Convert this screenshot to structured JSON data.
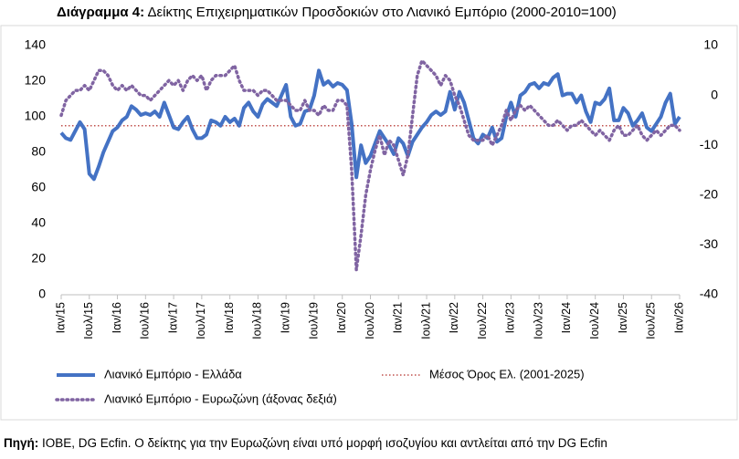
{
  "chart_data": {
    "type": "line",
    "title_label": "Διάγραμμα 4:",
    "title": "Δείκτης Επιχειρηματικών Προσδοκιών στο Λιανικό Εμπόριο (2000-2010=100)",
    "source_label": "Πηγή:",
    "source": "ΙΟΒΕ, DG Ecfin. Ο δείκτης για την Ευρωζώνη είναι υπό μορφή ισοζυγίου και αντλείται από την DG Ecfin",
    "categories": [
      "Ιαν/15",
      null,
      null,
      null,
      null,
      null,
      "Ιουλ/15",
      null,
      null,
      null,
      null,
      null,
      "Ιαν/16",
      null,
      null,
      null,
      null,
      null,
      "Ιουλ/16",
      null,
      null,
      null,
      null,
      null,
      "Ιαν/17",
      null,
      null,
      null,
      null,
      null,
      "Ιουλ/17",
      null,
      null,
      null,
      null,
      null,
      "Ιαν/18",
      null,
      null,
      null,
      null,
      null,
      "Ιουλ/18",
      null,
      null,
      null,
      null,
      null,
      "Ιαν/19",
      null,
      null,
      null,
      null,
      null,
      "Ιουλ/19",
      null,
      null,
      null,
      null,
      null,
      "Ιαν/20",
      null,
      null,
      null,
      null,
      null,
      "Ιουλ/20",
      null,
      null,
      null,
      null,
      null,
      "Ιαν/21",
      null,
      null,
      null,
      null,
      null,
      "Ιουλ/21",
      null,
      null,
      null,
      null,
      null,
      "Ιαν/22",
      null,
      null,
      null,
      null,
      null,
      "Ιουλ/22",
      null,
      null,
      null,
      null,
      null,
      "Ιαν/23",
      null,
      null,
      null,
      null,
      null,
      "Ιουλ/23",
      null,
      null,
      null,
      null,
      null,
      "Ιαν/24",
      null,
      null,
      null,
      null,
      null,
      "Ιουλ/24",
      null,
      null,
      null,
      null,
      null,
      "Ιαν/25",
      null,
      null,
      null,
      null,
      null,
      "Ιουλ/25",
      null,
      null,
      null,
      null,
      null,
      "Ιαν/26"
    ],
    "series": [
      {
        "name": "Λιανικό Εμπόριο  - Ελλάδα",
        "color": "#4472c4",
        "axis": "y",
        "line_style": "solid",
        "values": [
          91,
          88,
          87,
          92,
          97,
          93,
          68,
          65,
          72,
          80,
          86,
          92,
          94,
          98,
          100,
          106,
          104,
          101,
          102,
          101,
          103,
          100,
          108,
          101,
          94,
          93,
          97,
          100,
          93,
          88,
          88,
          90,
          98,
          97,
          95,
          100,
          97,
          99,
          95,
          105,
          108,
          103,
          100,
          107,
          110,
          108,
          106,
          112,
          118,
          100,
          95,
          96,
          103,
          104,
          112,
          126,
          118,
          120,
          117,
          119,
          118,
          115,
          96,
          66,
          84,
          74,
          78,
          85,
          92,
          88,
          84,
          79,
          88,
          85,
          78,
          86,
          90,
          94,
          97,
          101,
          103,
          101,
          103,
          114,
          104,
          114,
          108,
          98,
          88,
          85,
          90,
          88,
          94,
          86,
          88,
          100,
          108,
          100,
          112,
          114,
          118,
          119,
          116,
          119,
          118,
          122,
          124,
          112,
          113,
          113,
          108,
          112,
          103,
          97,
          108,
          107,
          110,
          116,
          98,
          98,
          105,
          102,
          95,
          98,
          102,
          94,
          92,
          96,
          100,
          108,
          113,
          96,
          100
        ]
      },
      {
        "name": "Λιανικό Εμπόριο - Ευρωζώνη (άξονας δεξιά)",
        "color": "#8064a2",
        "axis": "y2",
        "line_style": "dotted",
        "values": [
          -4,
          -1,
          0,
          1,
          1,
          2,
          1,
          3,
          5,
          5,
          4,
          2,
          1,
          2,
          1,
          2,
          1,
          0,
          0,
          -1,
          0,
          1,
          2,
          3,
          2,
          3,
          1,
          3,
          4,
          3,
          4,
          1,
          3,
          4,
          4,
          4,
          5,
          6,
          3,
          1,
          1,
          1,
          0,
          1,
          1,
          0,
          -1,
          -1,
          -1,
          -2,
          -3,
          -3,
          -1,
          -3,
          -3,
          -4,
          -2,
          -3,
          -3,
          -1,
          -1,
          -2,
          -15,
          -35,
          -28,
          -20,
          -15,
          -11,
          -8,
          -12,
          -9,
          -10,
          -13,
          -16,
          -12,
          -4,
          4,
          7,
          6,
          5,
          4,
          2,
          4,
          3,
          0,
          -2,
          -5,
          -8,
          -9,
          -9,
          -9,
          -8,
          -10,
          -8,
          -6,
          -3,
          -5,
          -3,
          -2,
          -3,
          -2,
          -3,
          -4,
          -5,
          -6,
          -6,
          -5,
          -6,
          -7,
          -6,
          -6,
          -5,
          -6,
          -7,
          -8,
          -7,
          -8,
          -9,
          -7,
          -6,
          -8,
          -8,
          -7,
          -6,
          -8,
          -9,
          -8,
          -7,
          -8,
          -7,
          -6,
          -6,
          -7
        ]
      }
    ],
    "reference_line": {
      "name": "Μέσος Όρος Ελ.  (2001-2025)",
      "value": 95,
      "color": "#c0504d",
      "line_style": "dotted"
    },
    "ylim": [
      0,
      140
    ],
    "yticks": [
      0,
      20,
      40,
      60,
      80,
      100,
      120,
      140
    ],
    "y2lim": [
      -40,
      10
    ],
    "y2ticks": [
      -40,
      -30,
      -20,
      -10,
      0,
      10
    ]
  }
}
